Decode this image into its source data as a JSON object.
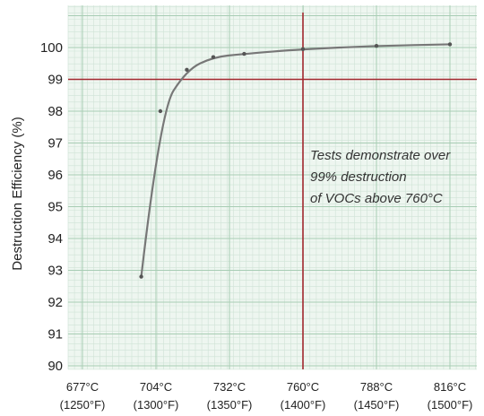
{
  "chart_data": {
    "type": "line",
    "title": "",
    "ylabel": "Destruction Efficiency (%)",
    "xlabel": "",
    "ylim": [
      90,
      101
    ],
    "x_ticks": [
      {
        "label": "677°C",
        "sub": "(1250°F)"
      },
      {
        "label": "704°C",
        "sub": "(1300°F)"
      },
      {
        "label": "732°C",
        "sub": "(1350°F)"
      },
      {
        "label": "760°C",
        "sub": "(1400°F)"
      },
      {
        "label": "788°C",
        "sub": "(1450°F)"
      },
      {
        "label": "816°C",
        "sub": "(1500°F)"
      }
    ],
    "y_ticks": [
      "90",
      "91",
      "92",
      "93",
      "94",
      "95",
      "96",
      "97",
      "98",
      "99",
      "100"
    ],
    "series": [
      {
        "x": [
          1290,
          1303,
          1321,
          1339,
          1360,
          1400,
          1450,
          1500
        ],
        "values": [
          92.8,
          98.0,
          99.3,
          99.7,
          99.8,
          99.95,
          100.05,
          100.1
        ]
      }
    ],
    "reference_lines": {
      "horizontal_y": 99,
      "vertical_x": 1400
    },
    "annotation": [
      "Tests demonstrate over",
      "99% destruction",
      "of VOCs above 760°C"
    ],
    "grid": true,
    "colors": {
      "grid_minor": "#cfe3d6",
      "grid_major": "#a8cdb4",
      "reference": "#a3282f",
      "curve": "#777777",
      "background": "#eef6f0"
    }
  }
}
